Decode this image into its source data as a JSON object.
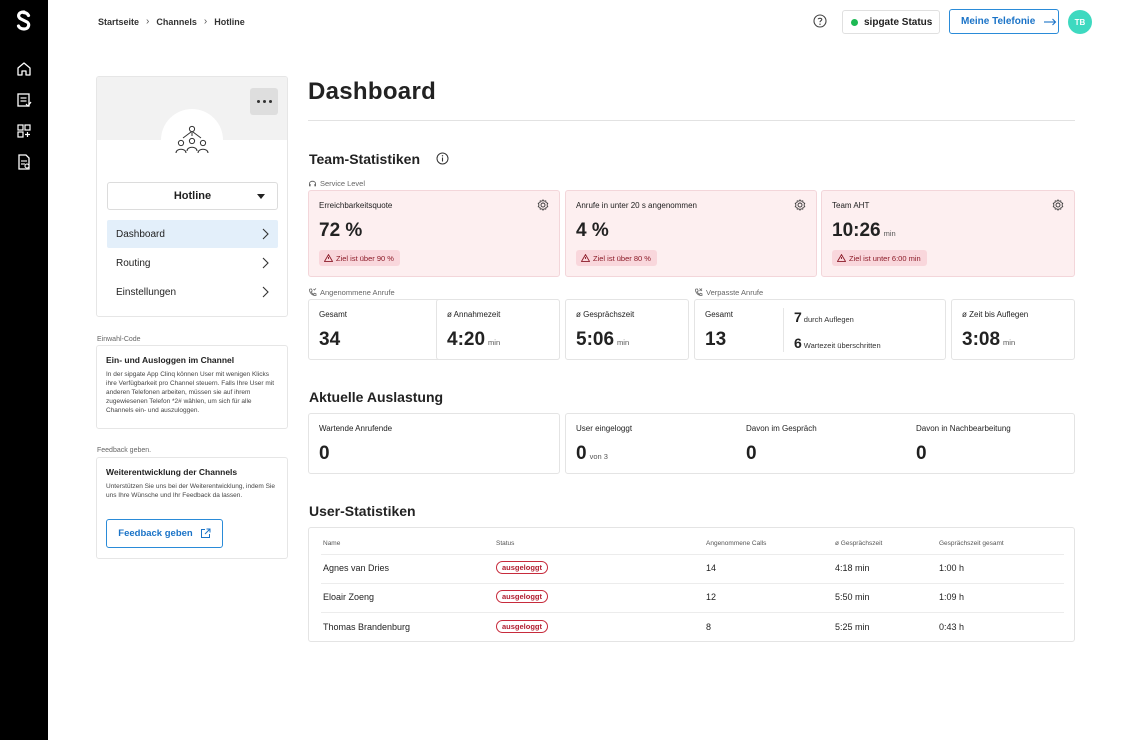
{
  "breadcrumb": [
    "Startseite",
    "Channels",
    "Hotline"
  ],
  "header": {
    "status_label": "sipgate Status",
    "telefonie_label": "Meine Telefonie",
    "avatar_initials": "TB",
    "status_color": "#1db954",
    "avatar_color": "#3ed9c0"
  },
  "rail": {
    "icons": [
      "sipgate-logo-icon",
      "home-icon",
      "list-icon",
      "apps-icon",
      "document-icon"
    ]
  },
  "channel": {
    "name": "Hotline",
    "nav": [
      "Dashboard",
      "Routing",
      "Einstellungen"
    ],
    "active_nav": "Dashboard"
  },
  "dial_in": {
    "section_label": "Einwahl-Code",
    "title": "Ein- und Ausloggen im Channel",
    "text": "In der sipgate App Clinq können User mit wenigen Klicks ihre Verfügbarkeit pro Channel steuern. Falls Ihre User mit anderen Telefonen arbeiten, müssen sie auf ihrem zugewiesenen Telefon *2# wählen, um sich für alle Channels ein- und auszuloggen."
  },
  "feedback": {
    "section_label": "Feedback geben.",
    "title": "Weiterentwicklung der Channels",
    "text": "Unterstützen Sie uns bei der Weiterentwicklung, indem Sie uns Ihre Wünsche und Ihr Feedback da lassen.",
    "button_label": "Feedback geben"
  },
  "main": {
    "title": "Dashboard",
    "team_stats_title": "Team-Statistiken",
    "service_level_label": "Service Level",
    "service_cards": [
      {
        "label": "Erreichbarkeitsquote",
        "value": "72 %",
        "unit": "",
        "warning": "Ziel ist über 90 %"
      },
      {
        "label": "Anrufe in unter 20 s angenommen",
        "value": "4 %",
        "unit": "",
        "warning": "Ziel ist über 80 %"
      },
      {
        "label": "Team AHT",
        "value": "10:26",
        "unit": "min",
        "warning": "Ziel ist unter 6:00 min"
      }
    ],
    "accepted_label": "Angenommene Anrufe",
    "accepted_cards": [
      {
        "label": "Gesamt",
        "value": "34",
        "unit": ""
      },
      {
        "label": "ø Annahmezeit",
        "value": "4:20",
        "unit": "min"
      },
      {
        "label": "ø Gesprächszeit",
        "value": "5:06",
        "unit": "min"
      }
    ],
    "missed_label": "Verpasste Anrufe",
    "missed": {
      "total_label": "Gesamt",
      "total_value": "13",
      "hangup_count": "7",
      "hangup_label": "durch Auflegen",
      "wait_count": "6",
      "wait_label": "Wartezeit überschritten",
      "time_label": "ø Zeit bis Auflegen",
      "time_value": "3:08",
      "time_unit": "min"
    },
    "load_title": "Aktuelle Auslastung",
    "load": {
      "waiting_label": "Wartende Anrufende",
      "waiting_value": "0",
      "logged_label": "User eingeloggt",
      "logged_value": "0",
      "logged_of": "von 3",
      "in_call_label": "Davon im Gespräch",
      "in_call_value": "0",
      "post_label": "Davon in Nachbearbeitung",
      "post_value": "0"
    },
    "user_stats_title": "User-Statistiken",
    "table": {
      "headers": [
        "Name",
        "Status",
        "Angenommene Calls",
        "ø Gesprächszeit",
        "Gesprächszeit gesamt"
      ],
      "rows": [
        {
          "name": "Agnes van Dries",
          "status": "ausgeloggt",
          "calls": "14",
          "avg": "4:18 min",
          "total": "1:00 h"
        },
        {
          "name": "Eloair Zoeng",
          "status": "ausgeloggt",
          "calls": "12",
          "avg": "5:50 min",
          "total": "1:09 h"
        },
        {
          "name": "Thomas Brandenburg",
          "status": "ausgeloggt",
          "calls": "8",
          "avg": "5:25 min",
          "total": "0:43 h"
        }
      ]
    }
  }
}
